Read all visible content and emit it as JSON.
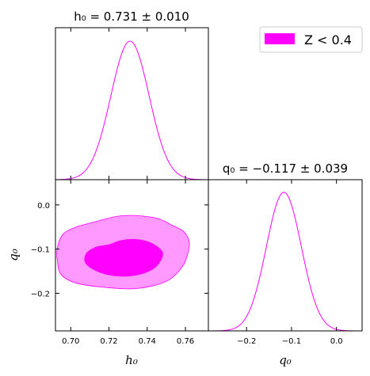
{
  "chart_data": {
    "type": "corner-plot",
    "color": "#ff00ff",
    "legend": {
      "label": "Z < 0.4",
      "placement": "top-right"
    },
    "parameters": [
      {
        "name": "h0",
        "label": "h₀",
        "title": "h₀ = 0.731 ± 0.010",
        "mean": 0.731,
        "sigma": 0.01,
        "range": [
          0.692,
          0.772
        ],
        "ticks": [
          0.7,
          0.72,
          0.74,
          0.76
        ],
        "tick_labels": [
          "0.70",
          "0.72",
          "0.74",
          "0.76"
        ]
      },
      {
        "name": "q0",
        "label": "q₀",
        "title": "q₀ = −0.117 ± 0.039",
        "mean": -0.117,
        "sigma": 0.039,
        "range": [
          -0.285,
          0.057
        ],
        "ticks": [
          -0.2,
          -0.1,
          0.0
        ],
        "tick_labels": [
          "−0.2",
          "−0.1",
          "0.0"
        ]
      }
    ],
    "joint": {
      "x": "h0",
      "y": "q0",
      "contours": [
        {
          "level": "68%",
          "opacity": 1.0,
          "points": [
            [
              0.72,
              -0.09
            ],
            [
              0.726,
              -0.081
            ],
            [
              0.733,
              -0.078
            ],
            [
              0.74,
              -0.083
            ],
            [
              0.745,
              -0.094
            ],
            [
              0.748,
              -0.108
            ],
            [
              0.747,
              -0.126
            ],
            [
              0.743,
              -0.145
            ],
            [
              0.735,
              -0.158
            ],
            [
              0.725,
              -0.161
            ],
            [
              0.715,
              -0.152
            ],
            [
              0.708,
              -0.133
            ],
            [
              0.708,
              -0.111
            ],
            [
              0.713,
              -0.096
            ]
          ]
        },
        {
          "level": "95%",
          "opacity": 0.4,
          "points": [
            [
              0.712,
              -0.039
            ],
            [
              0.724,
              -0.026
            ],
            [
              0.733,
              -0.024
            ],
            [
              0.745,
              -0.03
            ],
            [
              0.753,
              -0.046
            ],
            [
              0.759,
              -0.06
            ],
            [
              0.762,
              -0.084
            ],
            [
              0.761,
              -0.114
            ],
            [
              0.758,
              -0.142
            ],
            [
              0.75,
              -0.173
            ],
            [
              0.735,
              -0.189
            ],
            [
              0.719,
              -0.187
            ],
            [
              0.703,
              -0.177
            ],
            [
              0.695,
              -0.158
            ],
            [
              0.693,
              -0.127
            ],
            [
              0.693,
              -0.097
            ],
            [
              0.696,
              -0.066
            ],
            [
              0.703,
              -0.05
            ]
          ]
        }
      ]
    }
  }
}
